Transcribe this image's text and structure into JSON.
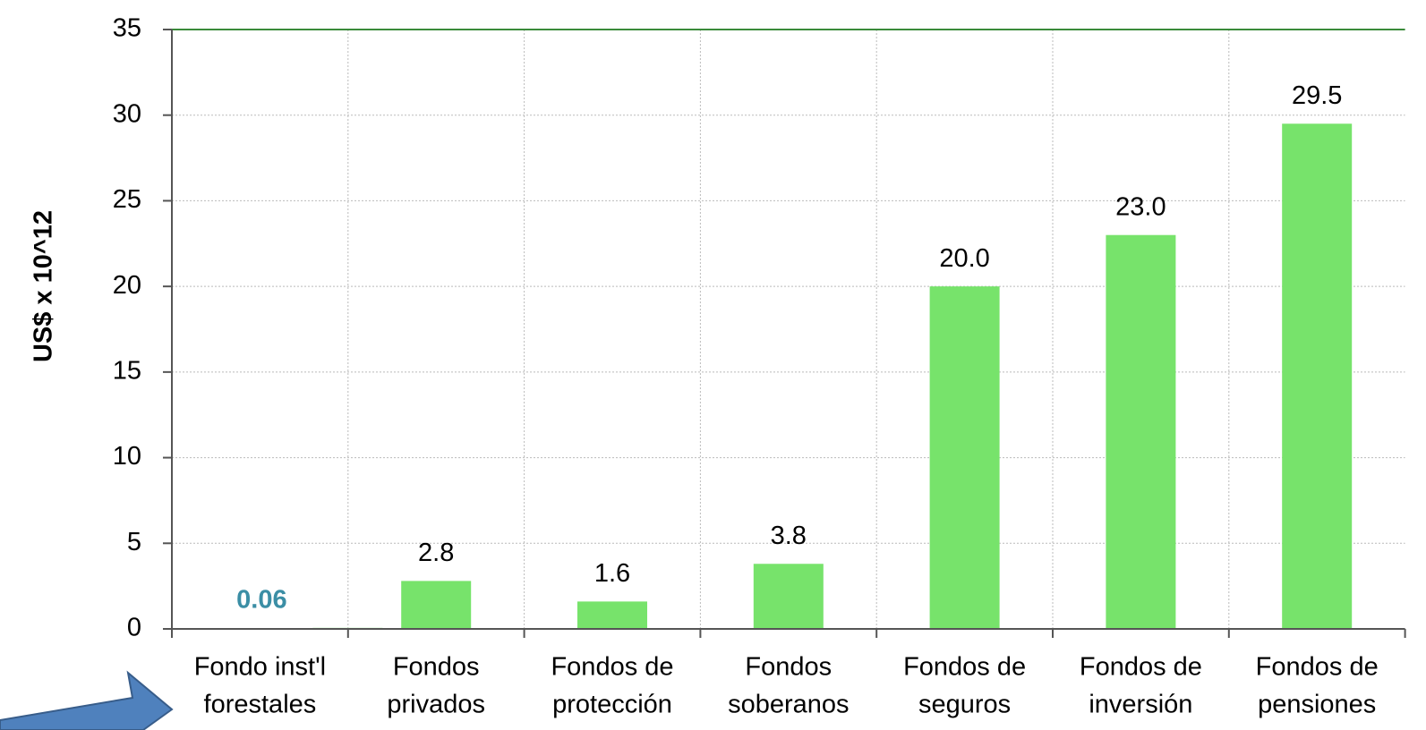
{
  "chart_data": {
    "type": "bar",
    "y_label": "US$ x 10^12",
    "categories": [
      [
        "Fondo inst'l",
        "forestales"
      ],
      [
        "Fondos",
        "privados"
      ],
      [
        "Fondos de",
        "protección"
      ],
      [
        "Fondos",
        "soberanos"
      ],
      [
        "Fondos de",
        "seguros"
      ],
      [
        "Fondos de",
        "inversión"
      ],
      [
        "Fondos de",
        "pensiones"
      ]
    ],
    "values": [
      0.06,
      2.8,
      1.6,
      3.8,
      20,
      23,
      29.5
    ],
    "value_labels": [
      "0.06",
      "2.8",
      "1.6",
      "3.8",
      "20.0",
      "23.0",
      "29.5"
    ],
    "color": "#77e36b",
    "highlight_label_color": "#3b8ea5",
    "ylim": [
      0,
      35
    ],
    "yticks": [
      0,
      5,
      10,
      15,
      20,
      25,
      30,
      35
    ],
    "grid": true
  }
}
